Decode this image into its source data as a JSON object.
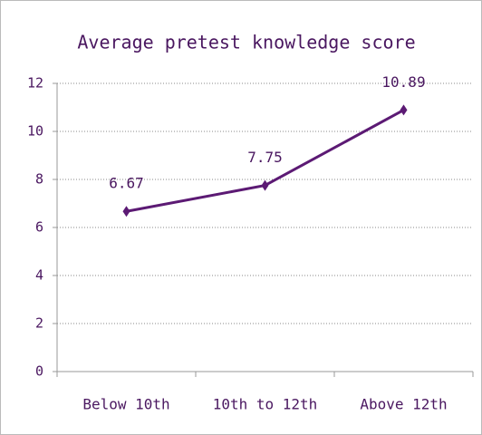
{
  "chart_data": {
    "type": "line",
    "title": "Average pretest knowledge score",
    "categories": [
      "Below 10th",
      "10th to 12th",
      "Above 12th"
    ],
    "values": [
      6.67,
      7.75,
      10.89
    ],
    "color": "#5c1a74",
    "ylim": [
      0,
      12
    ],
    "yticks": [
      0,
      2,
      4,
      6,
      8,
      10,
      12
    ],
    "grid": true
  }
}
